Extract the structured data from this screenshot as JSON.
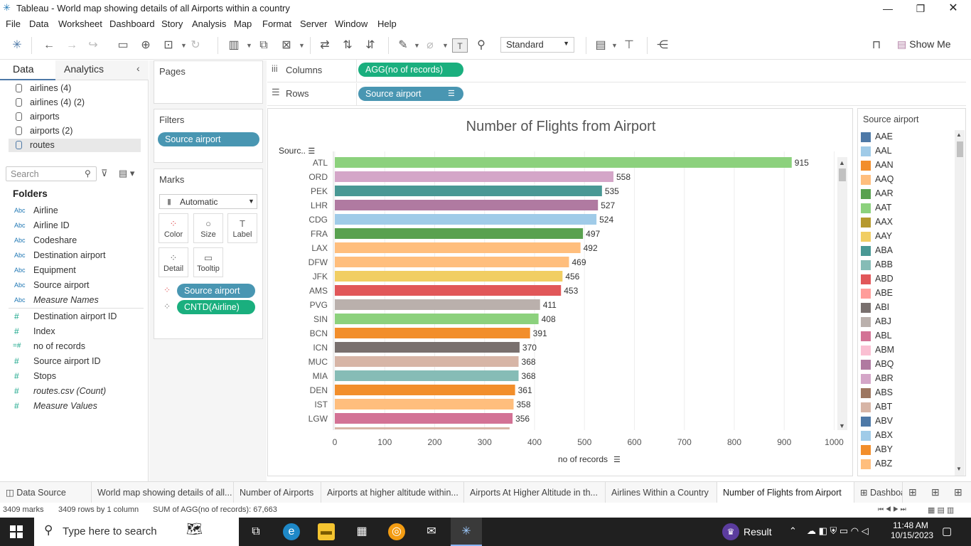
{
  "window": {
    "title": "Tableau - World map showing details of all Airports within a country"
  },
  "menu": [
    "File",
    "Data",
    "Worksheet",
    "Dashboard",
    "Story",
    "Analysis",
    "Map",
    "Format",
    "Server",
    "Window",
    "Help"
  ],
  "toolbar": {
    "fit_select": "Standard",
    "show_me": "Show Me"
  },
  "data_pane": {
    "tabs": [
      "Data",
      "Analytics"
    ],
    "sources": [
      "airlines (4)",
      "airlines (4) (2)",
      "airports",
      "airports (2)",
      "routes"
    ],
    "active_source": "routes",
    "search_placeholder": "Search",
    "folders_label": "Folders",
    "dimensions": [
      "Airline",
      "Airline ID",
      "Codeshare",
      "Destination airport",
      "Equipment",
      "Source airport",
      "Measure Names"
    ],
    "measures": [
      "Destination airport ID",
      "Index",
      "no of records",
      "Source airport ID",
      "Stops",
      "routes.csv (Count)",
      "Measure Values"
    ],
    "type_abc": "Abc",
    "type_num": "#",
    "type_calc": "=#"
  },
  "cards": {
    "pages": "Pages",
    "filters": "Filters",
    "filter_pill": "Source airport",
    "marks": "Marks",
    "mark_type": "Automatic",
    "mark_buttons": [
      "Color",
      "Size",
      "Label",
      "Detail",
      "Tooltip"
    ],
    "mark_pills": [
      "Source airport",
      "CNTD(Airline)"
    ]
  },
  "shelves": {
    "columns_label": "Columns",
    "columns_pill": "AGG(no of records)",
    "rows_label": "Rows",
    "rows_pill": "Source airport"
  },
  "chart_data": {
    "type": "bar",
    "orientation": "horizontal",
    "title": "Number of Flights from Airport",
    "row_header": "Sourc..",
    "xlabel": "no of records",
    "xlim": [
      0,
      1050
    ],
    "xticks": [
      0,
      100,
      200,
      300,
      400,
      500,
      600,
      700,
      800,
      900,
      1000
    ],
    "categories": [
      "ATL",
      "ORD",
      "PEK",
      "LHR",
      "CDG",
      "FRA",
      "LAX",
      "DFW",
      "JFK",
      "AMS",
      "PVG",
      "SIN",
      "BCN",
      "ICN",
      "MUC",
      "MIA",
      "DEN",
      "IST",
      "LGW"
    ],
    "values": [
      915,
      558,
      535,
      527,
      524,
      497,
      492,
      469,
      456,
      453,
      411,
      408,
      391,
      370,
      368,
      368,
      361,
      358,
      356
    ],
    "colors": [
      "#8cd17d",
      "#d4a6c8",
      "#499894",
      "#b07aa1",
      "#a0cbe8",
      "#59a14f",
      "#ffbe7d",
      "#ffbe7d",
      "#f1ce63",
      "#e15759",
      "#bab0ac",
      "#8cd17d",
      "#f28e2b",
      "#79706e",
      "#d7b5a6",
      "#86bcb6",
      "#f28e2b",
      "#ffbe7d",
      "#d37295"
    ]
  },
  "legend": {
    "title": "Source airport",
    "items": [
      {
        "label": "AAE",
        "color": "#4e79a7"
      },
      {
        "label": "AAL",
        "color": "#a0cbe8"
      },
      {
        "label": "AAN",
        "color": "#f28e2b"
      },
      {
        "label": "AAQ",
        "color": "#ffbe7d"
      },
      {
        "label": "AAR",
        "color": "#59a14f"
      },
      {
        "label": "AAT",
        "color": "#8cd17d"
      },
      {
        "label": "AAX",
        "color": "#b6992d"
      },
      {
        "label": "AAY",
        "color": "#f1ce63"
      },
      {
        "label": "ABA",
        "color": "#499894"
      },
      {
        "label": "ABB",
        "color": "#86bcb6"
      },
      {
        "label": "ABD",
        "color": "#e15759"
      },
      {
        "label": "ABE",
        "color": "#ff9d9a"
      },
      {
        "label": "ABI",
        "color": "#79706e"
      },
      {
        "label": "ABJ",
        "color": "#bab0ac"
      },
      {
        "label": "ABL",
        "color": "#d37295"
      },
      {
        "label": "ABM",
        "color": "#fabfd2"
      },
      {
        "label": "ABQ",
        "color": "#b07aa1"
      },
      {
        "label": "ABR",
        "color": "#d4a6c8"
      },
      {
        "label": "ABS",
        "color": "#9d7660"
      },
      {
        "label": "ABT",
        "color": "#d7b5a6"
      },
      {
        "label": "ABV",
        "color": "#4e79a7"
      },
      {
        "label": "ABX",
        "color": "#a0cbe8"
      },
      {
        "label": "ABY",
        "color": "#f28e2b"
      },
      {
        "label": "ABZ",
        "color": "#ffbe7d"
      }
    ]
  },
  "sheet_tabs": [
    "Data Source",
    "World map showing details of all...",
    "Number of Airports",
    "Airports at higher altitude within...",
    "Airports At Higher Altitude in th...",
    "Airlines Within a Country",
    "Number of Flights from Airport",
    "Dashboa"
  ],
  "active_sheet": "Number of Flights from Airport",
  "status": {
    "marks": "3409 marks",
    "rows": "3409 rows by 1 column",
    "sum": "SUM of AGG(no of records): 67,663"
  },
  "taskbar": {
    "search": "Type here to search",
    "result": "Result",
    "time": "11:48 AM",
    "date": "10/15/2023"
  }
}
